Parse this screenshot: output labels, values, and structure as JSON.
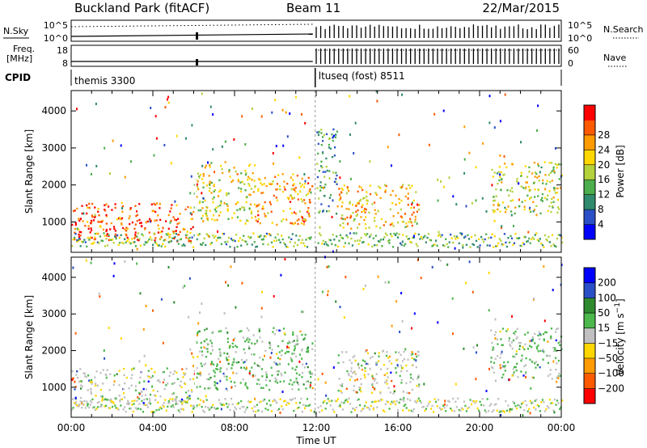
{
  "header": {
    "station": "Buckland Park (fitACF)",
    "beam": "Beam 11",
    "date": "22/Mar/2015"
  },
  "summary_panels": {
    "nsky_label": "N.Sky",
    "nsearch_label": "N.Search",
    "nsky_ticks": [
      "10^5",
      "10^0"
    ],
    "nsearch_ticks": [
      "10^5",
      "10^0"
    ],
    "freq_label_1": "Freq.",
    "freq_label_2": "[MHz]",
    "freq_ticks": [
      "18",
      "8"
    ],
    "nave_label": "Nave",
    "nave_ticks": [
      "60",
      "0"
    ],
    "cpid_label": "CPID",
    "cpid_segments": [
      {
        "name": "themis 3300",
        "start_hour": 0,
        "end_hour": 11.9
      },
      {
        "name": "ltuseq (fost) 8511",
        "start_hour": 11.95,
        "end_hour": 24
      }
    ]
  },
  "chart_data": [
    {
      "type": "heatmap",
      "title": "",
      "ylabel": "Slant Range [km]",
      "xlabel": "",
      "xlim": [
        0,
        24
      ],
      "ylim": [
        180,
        4550
      ],
      "yticks": [
        1000,
        2000,
        3000,
        4000
      ],
      "colorbar": {
        "label": "Power [dB]",
        "range": [
          0,
          32
        ],
        "ticks": [
          4,
          8,
          12,
          16,
          20,
          24,
          28
        ],
        "colors": [
          "#0000ff",
          "#2a4fc7",
          "#2f8a6e",
          "#4cae4c",
          "#b4d23c",
          "#ffd700",
          "#ff9b00",
          "#ff5a00",
          "#ff0000"
        ]
      },
      "regions": [
        {
          "t_start": 0,
          "t_end": 6,
          "r_min": 450,
          "r_max": 1500,
          "value": 27
        },
        {
          "t_start": 6,
          "t_end": 9,
          "r_min": 1000,
          "r_max": 2600,
          "value": 18
        },
        {
          "t_start": 9,
          "t_end": 11.8,
          "r_min": 900,
          "r_max": 2300,
          "value": 22
        },
        {
          "t_start": 12,
          "t_end": 13,
          "r_min": 1200,
          "r_max": 3500,
          "value": 10
        },
        {
          "t_start": 13,
          "t_end": 17,
          "r_min": 800,
          "r_max": 2000,
          "value": 21
        },
        {
          "t_start": 20.5,
          "t_end": 24,
          "r_min": 1200,
          "r_max": 2600,
          "value": 17
        }
      ]
    },
    {
      "type": "heatmap",
      "title": "",
      "ylabel": "Slant Range [km]",
      "xlabel": "Time UT",
      "xlim": [
        0,
        24
      ],
      "ylim": [
        180,
        4550
      ],
      "xticks": [
        "00:00",
        "04:00",
        "08:00",
        "12:00",
        "16:00",
        "20:00",
        "00:00"
      ],
      "yticks": [
        1000,
        2000,
        3000,
        4000
      ],
      "colorbar": {
        "label": "Velocity [m s^-1]",
        "range": [
          -240,
          240
        ],
        "ticks": [
          200,
          100,
          50,
          15,
          -15,
          -50,
          -100,
          -200
        ],
        "colors": [
          "#ff0000",
          "#ff5a00",
          "#ff9b00",
          "#ffd700",
          "#c0c0c0",
          "#4cb84c",
          "#2f8a2f",
          "#2a4fc7",
          "#0000ff"
        ]
      },
      "regions": [
        {
          "t_start": 0,
          "t_end": 6,
          "r_min": 450,
          "r_max": 1500,
          "value": 0
        },
        {
          "t_start": 6,
          "t_end": 11.8,
          "r_min": 900,
          "r_max": 2600,
          "value": 40
        },
        {
          "t_start": 13,
          "t_end": 17,
          "r_min": 800,
          "r_max": 2000,
          "value": 0
        },
        {
          "t_start": 20.5,
          "t_end": 24,
          "r_min": 1200,
          "r_max": 2600,
          "value": 30
        }
      ]
    }
  ]
}
